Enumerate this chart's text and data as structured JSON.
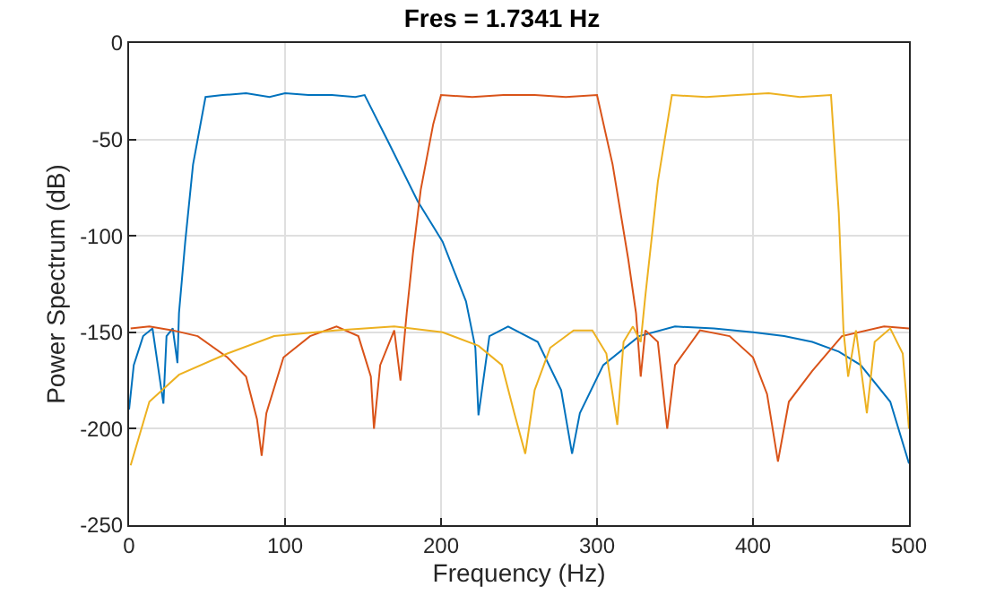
{
  "chart_data": {
    "type": "line",
    "title": "Fres = 1.7341 Hz",
    "xlabel": "Frequency (Hz)",
    "ylabel": "Power Spectrum (dB)",
    "xlim": [
      0,
      500
    ],
    "ylim": [
      -250,
      0
    ],
    "xticks": [
      0,
      100,
      200,
      300,
      400,
      500
    ],
    "yticks": [
      -250,
      -200,
      -150,
      -100,
      -50,
      0
    ],
    "grid": true,
    "marker": "none",
    "line_style": "solid",
    "series": [
      {
        "color": "#0072bd",
        "x": [
          0,
          3,
          9,
          15,
          22,
          24,
          28,
          31,
          32,
          36,
          41,
          49,
          60,
          75,
          90,
          100,
          115,
          130,
          145,
          151,
          166,
          185,
          201,
          216,
          222,
          224,
          231,
          243,
          262,
          277,
          284,
          289,
          304,
          327,
          350,
          375,
          400,
          420,
          438,
          455,
          469,
          488,
          500
        ],
        "values": [
          -190,
          -167,
          -152,
          -148,
          -187,
          -152,
          -148,
          -166,
          -140,
          -103,
          -63,
          -28,
          -27,
          -26,
          -28,
          -26,
          -27,
          -27,
          -28,
          -27,
          -51,
          -82,
          -103,
          -134,
          -158,
          -193,
          -152,
          -147,
          -155,
          -180,
          -213,
          -192,
          -167,
          -152,
          -147,
          -148,
          -150,
          -152,
          -155,
          -160,
          -167,
          -186,
          -218
        ]
      },
      {
        "color": "#d95319",
        "x": [
          1,
          13,
          28,
          44,
          63,
          75,
          82,
          85,
          88,
          99,
          116,
          133,
          147,
          155,
          157,
          161,
          170,
          174,
          178,
          182,
          187,
          195,
          200,
          220,
          240,
          260,
          280,
          300,
          310,
          320,
          325,
          328,
          331,
          339,
          345,
          350,
          366,
          385,
          400,
          409,
          416,
          423,
          438,
          457,
          484,
          500
        ],
        "values": [
          -148,
          -147,
          -149,
          -152,
          -163,
          -173,
          -195,
          -214,
          -192,
          -163,
          -152,
          -147,
          -152,
          -173,
          -200,
          -167,
          -149,
          -175,
          -140,
          -109,
          -76,
          -42,
          -27,
          -28,
          -27,
          -27,
          -28,
          -27,
          -63,
          -112,
          -140,
          -173,
          -149,
          -155,
          -200,
          -167,
          -149,
          -152,
          -163,
          -182,
          -217,
          -186,
          -170,
          -152,
          -147,
          -148
        ]
      },
      {
        "color": "#edb120",
        "x": [
          1,
          13,
          32,
          63,
          93,
          132,
          170,
          201,
          224,
          239,
          247,
          254,
          260,
          270,
          285,
          297,
          306,
          313,
          317,
          323,
          328,
          331,
          339,
          348,
          370,
          390,
          410,
          430,
          450,
          455,
          458,
          461,
          466,
          473,
          478,
          488,
          496,
          500
        ],
        "values": [
          -219,
          -186,
          -172,
          -161,
          -152,
          -149,
          -147,
          -150,
          -157,
          -167,
          -192,
          -213,
          -180,
          -158,
          -149,
          -149,
          -161,
          -198,
          -155,
          -147,
          -155,
          -131,
          -72,
          -27,
          -28,
          -27,
          -26,
          -28,
          -27,
          -88,
          -149,
          -173,
          -149,
          -192,
          -155,
          -148,
          -161,
          -200
        ]
      }
    ]
  }
}
